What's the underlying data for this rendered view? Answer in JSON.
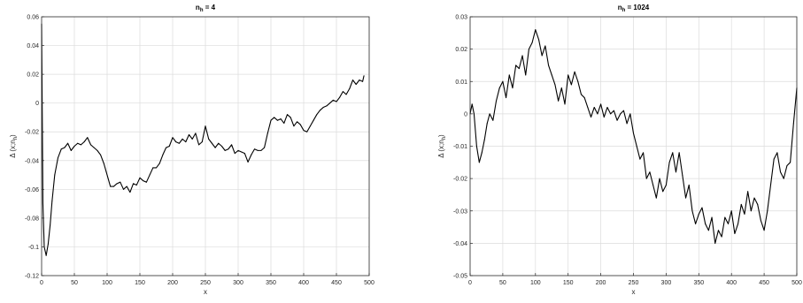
{
  "colors": {
    "line": "#000000",
    "grid": "#dcdcdc",
    "axes": "#262626",
    "background": "#ffffff"
  },
  "chart_data": [
    {
      "type": "line",
      "title": "n_h = 4",
      "title_main": "n",
      "title_sub": "h",
      "title_rest": " = 4",
      "xlabel": "x",
      "ylabel_main": "Δ (x;n",
      "ylabel_sub": "h",
      "ylabel_end": ")",
      "xlim": [
        0,
        500
      ],
      "ylim": [
        -0.12,
        0.06
      ],
      "xticks": [
        0,
        50,
        100,
        150,
        200,
        250,
        300,
        350,
        400,
        450,
        500
      ],
      "xtick_labels": [
        "0",
        "50",
        "100",
        "150",
        "200",
        "250",
        "300",
        "350",
        "400",
        "450",
        "500"
      ],
      "yticks": [
        -0.12,
        -0.1,
        -0.08,
        -0.06,
        -0.04,
        -0.02,
        0,
        0.02,
        0.04,
        0.06
      ],
      "ytick_labels": [
        "-0.12",
        "-0.1",
        "-0.08",
        "-0.06",
        "-0.04",
        "-0.02",
        "0",
        "0.02",
        "0.04",
        "0.06"
      ],
      "grid": true,
      "series": [
        {
          "x": [
            0,
            2,
            4,
            7,
            10,
            13,
            16,
            20,
            25,
            30,
            35,
            40,
            45,
            50,
            55,
            60,
            65,
            70,
            75,
            80,
            85,
            90,
            95,
            100,
            105,
            110,
            115,
            120,
            125,
            130,
            135,
            140,
            145,
            150,
            155,
            160,
            165,
            170,
            175,
            180,
            185,
            190,
            195,
            200,
            205,
            210,
            215,
            220,
            225,
            230,
            235,
            240,
            245,
            250,
            255,
            260,
            265,
            270,
            275,
            280,
            285,
            290,
            295,
            300,
            305,
            310,
            315,
            320,
            325,
            330,
            335,
            340,
            345,
            350,
            355,
            360,
            365,
            370,
            375,
            380,
            385,
            390,
            395,
            400,
            405,
            410,
            415,
            420,
            425,
            430,
            435,
            440,
            445,
            450,
            455,
            460,
            465,
            470,
            475,
            480,
            485,
            490,
            492
          ],
          "y": [
            0.055,
            -0.07,
            -0.1,
            -0.106,
            -0.098,
            -0.085,
            -0.068,
            -0.05,
            -0.038,
            -0.032,
            -0.031,
            -0.028,
            -0.033,
            -0.03,
            -0.028,
            -0.029,
            -0.027,
            -0.024,
            -0.029,
            -0.031,
            -0.033,
            -0.036,
            -0.042,
            -0.05,
            -0.058,
            -0.058,
            -0.056,
            -0.055,
            -0.06,
            -0.058,
            -0.062,
            -0.056,
            -0.057,
            -0.052,
            -0.054,
            -0.055,
            -0.05,
            -0.045,
            -0.045,
            -0.042,
            -0.036,
            -0.031,
            -0.03,
            -0.024,
            -0.027,
            -0.028,
            -0.025,
            -0.027,
            -0.022,
            -0.025,
            -0.021,
            -0.029,
            -0.027,
            -0.016,
            -0.025,
            -0.028,
            -0.031,
            -0.028,
            -0.03,
            -0.033,
            -0.032,
            -0.029,
            -0.035,
            -0.033,
            -0.034,
            -0.035,
            -0.041,
            -0.036,
            -0.032,
            -0.033,
            -0.033,
            -0.031,
            -0.021,
            -0.012,
            -0.01,
            -0.012,
            -0.011,
            -0.014,
            -0.008,
            -0.01,
            -0.016,
            -0.013,
            -0.015,
            -0.019,
            -0.02,
            -0.016,
            -0.012,
            -0.008,
            -0.005,
            -0.003,
            -0.002,
            0.0,
            0.002,
            0.001,
            0.004,
            0.008,
            0.006,
            0.01,
            0.016,
            0.013,
            0.016,
            0.015,
            0.019
          ]
        }
      ]
    },
    {
      "type": "line",
      "title": "n_h = 1024",
      "title_main": "n",
      "title_sub": "h",
      "title_rest": " = 1024",
      "xlabel": "x",
      "ylabel_main": "Δ (x;n",
      "ylabel_sub": "h",
      "ylabel_end": ")",
      "xlim": [
        0,
        500
      ],
      "ylim": [
        -0.05,
        0.03
      ],
      "xticks": [
        0,
        50,
        100,
        150,
        200,
        250,
        300,
        350,
        400,
        450,
        500
      ],
      "xtick_labels": [
        "0",
        "50",
        "100",
        "150",
        "200",
        "250",
        "300",
        "350",
        "400",
        "450",
        "500"
      ],
      "yticks": [
        -0.05,
        -0.04,
        -0.03,
        -0.02,
        -0.01,
        0,
        0.01,
        0.02,
        0.03
      ],
      "ytick_labels": [
        "-0.05",
        "-0.04",
        "-0.03",
        "-0.02",
        "-0.01",
        "0",
        "0.01",
        "0.02",
        "0.03"
      ],
      "grid": true,
      "series": [
        {
          "x": [
            0,
            3,
            6,
            10,
            14,
            18,
            22,
            26,
            30,
            35,
            40,
            45,
            50,
            55,
            60,
            65,
            70,
            75,
            80,
            85,
            90,
            95,
            100,
            105,
            110,
            115,
            120,
            125,
            130,
            135,
            140,
            145,
            150,
            155,
            160,
            165,
            170,
            175,
            180,
            185,
            190,
            195,
            200,
            205,
            210,
            215,
            220,
            225,
            230,
            235,
            240,
            245,
            250,
            255,
            260,
            265,
            270,
            275,
            280,
            285,
            290,
            295,
            300,
            305,
            310,
            315,
            320,
            325,
            330,
            335,
            340,
            345,
            350,
            355,
            360,
            365,
            370,
            375,
            380,
            385,
            390,
            395,
            400,
            405,
            410,
            415,
            420,
            425,
            430,
            435,
            440,
            445,
            450,
            455,
            460,
            465,
            470,
            475,
            480,
            485,
            490,
            495,
            500
          ],
          "y": [
            0.0,
            0.003,
            0.0,
            -0.01,
            -0.015,
            -0.012,
            -0.008,
            -0.003,
            0.0,
            -0.002,
            0.004,
            0.008,
            0.01,
            0.005,
            0.012,
            0.008,
            0.015,
            0.014,
            0.018,
            0.012,
            0.02,
            0.022,
            0.026,
            0.023,
            0.018,
            0.021,
            0.015,
            0.012,
            0.009,
            0.004,
            0.008,
            0.003,
            0.012,
            0.009,
            0.013,
            0.01,
            0.006,
            0.005,
            0.002,
            -0.001,
            0.002,
            0.0,
            0.003,
            -0.001,
            0.002,
            0.0,
            0.001,
            -0.002,
            0.0,
            0.001,
            -0.003,
            0.0,
            -0.006,
            -0.01,
            -0.014,
            -0.012,
            -0.02,
            -0.018,
            -0.022,
            -0.026,
            -0.02,
            -0.024,
            -0.022,
            -0.015,
            -0.012,
            -0.018,
            -0.012,
            -0.019,
            -0.026,
            -0.022,
            -0.03,
            -0.034,
            -0.031,
            -0.029,
            -0.034,
            -0.036,
            -0.032,
            -0.04,
            -0.036,
            -0.038,
            -0.032,
            -0.034,
            -0.03,
            -0.037,
            -0.034,
            -0.028,
            -0.031,
            -0.024,
            -0.03,
            -0.026,
            -0.028,
            -0.033,
            -0.036,
            -0.03,
            -0.022,
            -0.014,
            -0.012,
            -0.018,
            -0.02,
            -0.016,
            -0.015,
            -0.003,
            0.008
          ]
        }
      ]
    }
  ]
}
